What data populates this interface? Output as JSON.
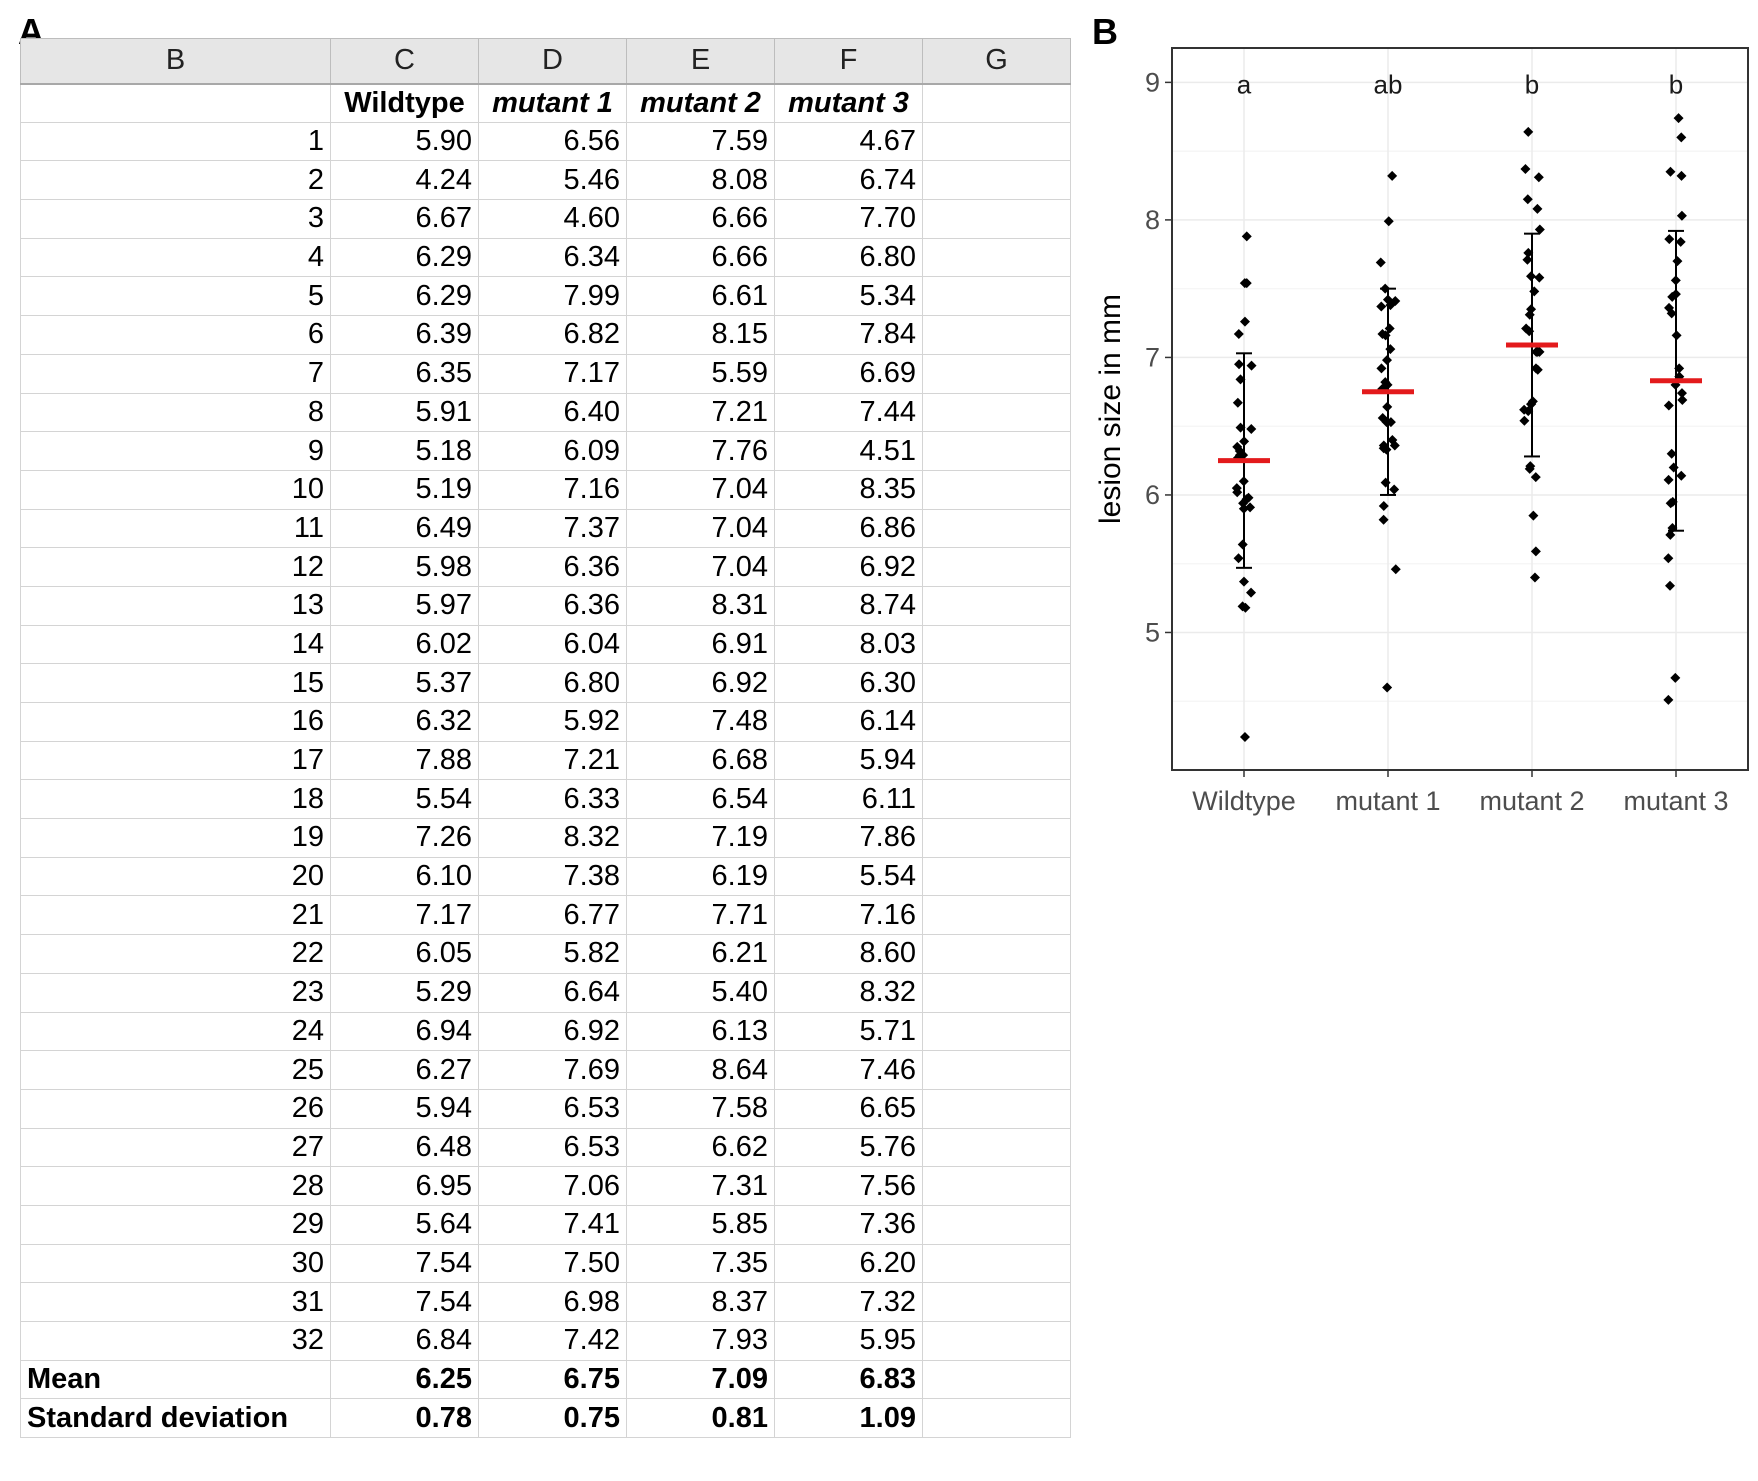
{
  "panels": {
    "a_label": "A",
    "b_label": "B"
  },
  "sheet": {
    "column_letters": [
      "B",
      "C",
      "D",
      "E",
      "F",
      "G"
    ],
    "group_headers": [
      "Wildtype",
      "mutant 1",
      "mutant 2",
      "mutant 3"
    ],
    "rows": [
      [
        "1",
        "5.90",
        "6.56",
        "7.59",
        "4.67"
      ],
      [
        "2",
        "4.24",
        "5.46",
        "8.08",
        "6.74"
      ],
      [
        "3",
        "6.67",
        "4.60",
        "6.66",
        "7.70"
      ],
      [
        "4",
        "6.29",
        "6.34",
        "6.66",
        "6.80"
      ],
      [
        "5",
        "6.29",
        "7.99",
        "6.61",
        "5.34"
      ],
      [
        "6",
        "6.39",
        "6.82",
        "8.15",
        "7.84"
      ],
      [
        "7",
        "6.35",
        "7.17",
        "5.59",
        "6.69"
      ],
      [
        "8",
        "5.91",
        "6.40",
        "7.21",
        "7.44"
      ],
      [
        "9",
        "5.18",
        "6.09",
        "7.76",
        "4.51"
      ],
      [
        "10",
        "5.19",
        "7.16",
        "7.04",
        "8.35"
      ],
      [
        "11",
        "6.49",
        "7.37",
        "7.04",
        "6.86"
      ],
      [
        "12",
        "5.98",
        "6.36",
        "7.04",
        "6.92"
      ],
      [
        "13",
        "5.97",
        "6.36",
        "8.31",
        "8.74"
      ],
      [
        "14",
        "6.02",
        "6.04",
        "6.91",
        "8.03"
      ],
      [
        "15",
        "5.37",
        "6.80",
        "6.92",
        "6.30"
      ],
      [
        "16",
        "6.32",
        "5.92",
        "7.48",
        "6.14"
      ],
      [
        "17",
        "7.88",
        "7.21",
        "6.68",
        "5.94"
      ],
      [
        "18",
        "5.54",
        "6.33",
        "6.54",
        "6.11"
      ],
      [
        "19",
        "7.26",
        "8.32",
        "7.19",
        "7.86"
      ],
      [
        "20",
        "6.10",
        "7.38",
        "6.19",
        "5.54"
      ],
      [
        "21",
        "7.17",
        "6.77",
        "7.71",
        "7.16"
      ],
      [
        "22",
        "6.05",
        "5.82",
        "6.21",
        "8.60"
      ],
      [
        "23",
        "5.29",
        "6.64",
        "5.40",
        "8.32"
      ],
      [
        "24",
        "6.94",
        "6.92",
        "6.13",
        "5.71"
      ],
      [
        "25",
        "6.27",
        "7.69",
        "8.64",
        "7.46"
      ],
      [
        "26",
        "5.94",
        "6.53",
        "7.58",
        "6.65"
      ],
      [
        "27",
        "6.48",
        "6.53",
        "6.62",
        "5.76"
      ],
      [
        "28",
        "6.95",
        "7.06",
        "7.31",
        "7.56"
      ],
      [
        "29",
        "5.64",
        "7.41",
        "5.85",
        "7.36"
      ],
      [
        "30",
        "7.54",
        "7.50",
        "7.35",
        "6.20"
      ],
      [
        "31",
        "7.54",
        "6.98",
        "8.37",
        "7.32"
      ],
      [
        "32",
        "6.84",
        "7.42",
        "7.93",
        "5.95"
      ]
    ],
    "mean_label": "Mean",
    "mean_values": [
      "6.25",
      "6.75",
      "7.09",
      "6.83"
    ],
    "sd_label": "Standard deviation",
    "sd_values": [
      "0.78",
      "0.75",
      "0.81",
      "1.09"
    ]
  },
  "chart_data": {
    "type": "scatter",
    "categories": [
      "Wildtype",
      "mutant 1",
      "mutant 2",
      "mutant 3"
    ],
    "ylabel": "lesion size in mm",
    "xlabel": "",
    "ylim": [
      4.0,
      9.25
    ],
    "yticks": [
      5,
      6,
      7,
      8,
      9
    ],
    "grid": true,
    "significance_letters": [
      "a",
      "ab",
      "b",
      "b"
    ],
    "points": [
      [
        5.9,
        4.24,
        6.67,
        6.29,
        6.29,
        6.39,
        6.35,
        5.91,
        5.18,
        5.19,
        6.49,
        5.98,
        5.97,
        6.02,
        5.37,
        6.32,
        7.88,
        5.54,
        7.26,
        6.1,
        7.17,
        6.05,
        5.29,
        6.94,
        6.27,
        5.94,
        6.48,
        6.95,
        5.64,
        7.54,
        7.54,
        6.84
      ],
      [
        6.56,
        5.46,
        4.6,
        6.34,
        7.99,
        6.82,
        7.17,
        6.4,
        6.09,
        7.16,
        7.37,
        6.36,
        6.36,
        6.04,
        6.8,
        5.92,
        7.21,
        6.33,
        8.32,
        7.38,
        6.77,
        5.82,
        6.64,
        6.92,
        7.69,
        6.53,
        6.53,
        7.06,
        7.41,
        7.5,
        6.98,
        7.42
      ],
      [
        7.59,
        8.08,
        6.66,
        6.66,
        6.61,
        8.15,
        5.59,
        7.21,
        7.76,
        7.04,
        7.04,
        7.04,
        8.31,
        6.91,
        6.92,
        7.48,
        6.68,
        6.54,
        7.19,
        6.19,
        7.71,
        6.21,
        5.4,
        6.13,
        8.64,
        7.58,
        6.62,
        7.31,
        5.85,
        7.35,
        8.37,
        7.93
      ],
      [
        4.67,
        6.74,
        7.7,
        6.8,
        5.34,
        7.84,
        6.69,
        7.44,
        4.51,
        8.35,
        6.86,
        6.92,
        8.74,
        8.03,
        6.3,
        6.14,
        5.94,
        6.11,
        7.86,
        5.54,
        7.16,
        8.6,
        8.32,
        5.71,
        7.46,
        6.65,
        5.76,
        7.56,
        7.36,
        6.2,
        7.32,
        5.95
      ]
    ],
    "means": [
      6.25,
      6.75,
      7.09,
      6.83
    ],
    "sd": [
      0.78,
      0.75,
      0.81,
      1.09
    ],
    "colors": {
      "points": "#000000",
      "mean_bar": "#e31a1c",
      "error_bar": "#000000",
      "grid": "#ebebeb",
      "panel_border": "#333333"
    }
  }
}
